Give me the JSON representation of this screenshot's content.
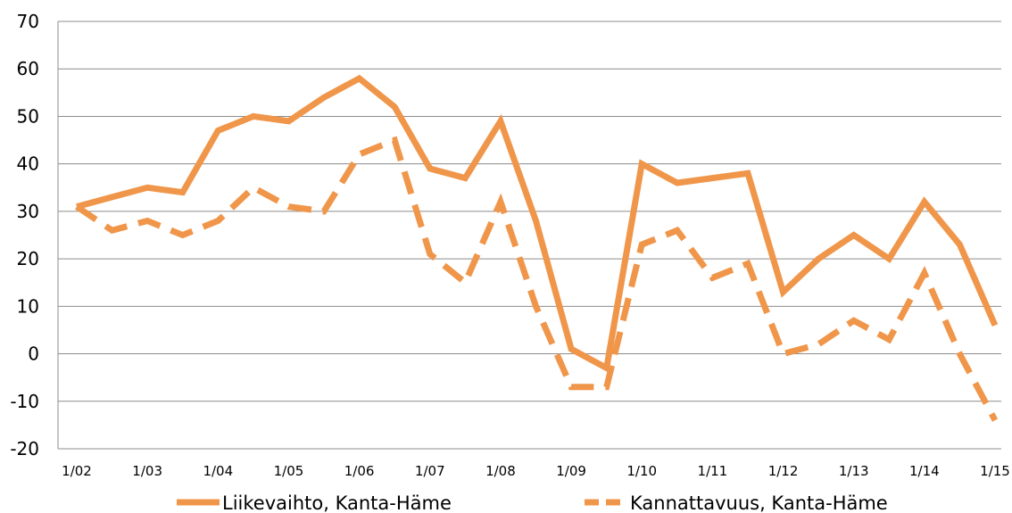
{
  "chart_data": {
    "type": "line",
    "title": "",
    "xlabel": "",
    "ylabel": "",
    "ylim": [
      -20,
      70
    ],
    "yticks": [
      "70",
      "60",
      "50",
      "40",
      "30",
      "20",
      "10",
      "0",
      "-10",
      "-20"
    ],
    "xtick_labels": [
      "1/02",
      "1/03",
      "1/04",
      "1/05",
      "1/06",
      "1/07",
      "1/08",
      "1/09",
      "1/10",
      "1/11",
      "1/12",
      "1/13",
      "1/14",
      "1/15"
    ],
    "grid": "horizontal",
    "legend_position": "bottom",
    "series_color": "#F0964A",
    "series": [
      {
        "name": "Liikevaihto, Kanta-Häme",
        "style": "solid",
        "values": [
          31,
          33,
          35,
          34,
          47,
          50,
          49,
          54,
          58,
          52,
          39,
          37,
          49,
          28,
          1,
          -3,
          40,
          36,
          37,
          38,
          13,
          20,
          25,
          20,
          32,
          23,
          6
        ]
      },
      {
        "name": "Kannattavuus, Kanta-Häme",
        "style": "dashed",
        "values": [
          31,
          26,
          28,
          25,
          28,
          35,
          31,
          30,
          42,
          45,
          21,
          15,
          32,
          10,
          -7,
          -7,
          23,
          26,
          16,
          19,
          0,
          2,
          7,
          3,
          17,
          0,
          -14
        ]
      }
    ]
  }
}
